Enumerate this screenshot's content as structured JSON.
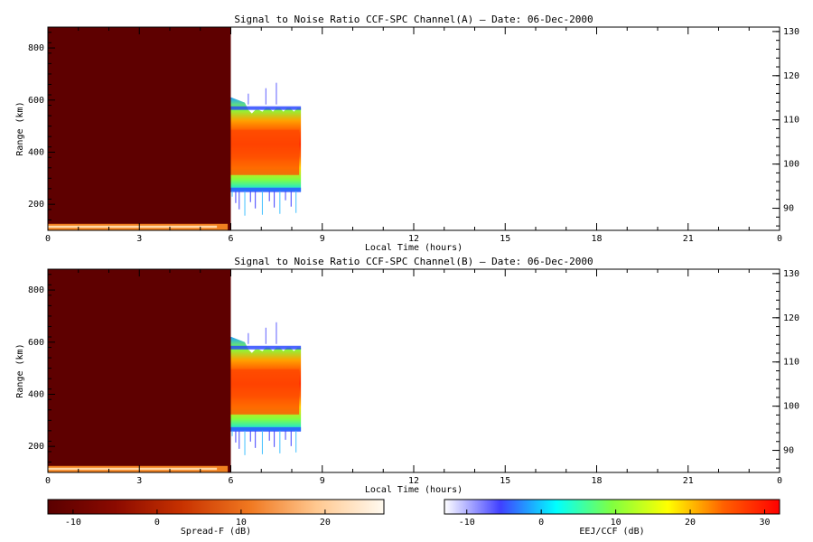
{
  "chart_data": [
    {
      "type": "heatmap",
      "title": "Signal to Noise Ratio CCF-SPC Channel(A) — Date: 06-Dec-2000",
      "xlabel": "Local Time (hours)",
      "ylabel": "Range (km)",
      "xlim": [
        0,
        24
      ],
      "ylim": [
        100,
        880
      ],
      "y2lim": [
        85,
        131
      ],
      "xticks": [
        "0",
        "3",
        "6",
        "9",
        "12",
        "15",
        "18",
        "21",
        "0"
      ],
      "yticks": [
        "200",
        "400",
        "600",
        "800"
      ],
      "y2ticks": [
        "90",
        "100",
        "110",
        "120",
        "130"
      ],
      "regions": [
        {
          "name": "spread-f",
          "x": [
            0,
            6.0
          ],
          "y": [
            100,
            880
          ],
          "value_db": -12
        },
        {
          "name": "e-layer-echo",
          "x": [
            0,
            5.9
          ],
          "y": [
            100,
            125
          ],
          "value_db": 18
        },
        {
          "name": "f-layer-echo",
          "x": [
            6.0,
            8.3
          ],
          "y_bottom": 250,
          "y_top": 590,
          "value_db": 28
        }
      ]
    },
    {
      "type": "heatmap",
      "title": "Signal to Noise Ratio CCF-SPC Channel(B) — Date: 06-Dec-2000",
      "xlabel": "Local Time (hours)",
      "ylabel": "Range (km)",
      "xlim": [
        0,
        24
      ],
      "ylim": [
        100,
        880
      ],
      "y2lim": [
        85,
        131
      ],
      "xticks": [
        "0",
        "3",
        "6",
        "9",
        "12",
        "15",
        "18",
        "21",
        "0"
      ],
      "yticks": [
        "200",
        "400",
        "600",
        "800"
      ],
      "y2ticks": [
        "90",
        "100",
        "110",
        "120",
        "130"
      ],
      "regions": [
        {
          "name": "spread-f",
          "x": [
            0,
            6.0
          ],
          "y": [
            100,
            880
          ],
          "value_db": -12
        },
        {
          "name": "e-layer-echo",
          "x": [
            0,
            5.9
          ],
          "y": [
            100,
            125
          ],
          "value_db": 18
        },
        {
          "name": "f-layer-echo",
          "x": [
            6.0,
            8.3
          ],
          "y_bottom": 260,
          "y_top": 600,
          "value_db": 27
        }
      ]
    }
  ],
  "colorbars": [
    {
      "label": "Spread-F (dB)",
      "range": [
        -13,
        27
      ],
      "ticks": [
        -10,
        0,
        10,
        20
      ],
      "tick_labels": [
        "-10",
        "0",
        "10",
        "20"
      ],
      "colors": [
        "#5a0000",
        "#8b0a00",
        "#c83200",
        "#f07820",
        "#ffc890",
        "#fffaf0"
      ]
    },
    {
      "label": "EEJ/CCF (dB)",
      "range": [
        -13,
        32
      ],
      "ticks": [
        -10,
        0,
        10,
        20,
        30
      ],
      "tick_labels": [
        "-10",
        "0",
        "10",
        "20",
        "30"
      ],
      "colors": [
        "#ffffff",
        "#4040ff",
        "#00ffff",
        "#80ff40",
        "#ffff00",
        "#ff6000",
        "#ff0000"
      ]
    }
  ]
}
